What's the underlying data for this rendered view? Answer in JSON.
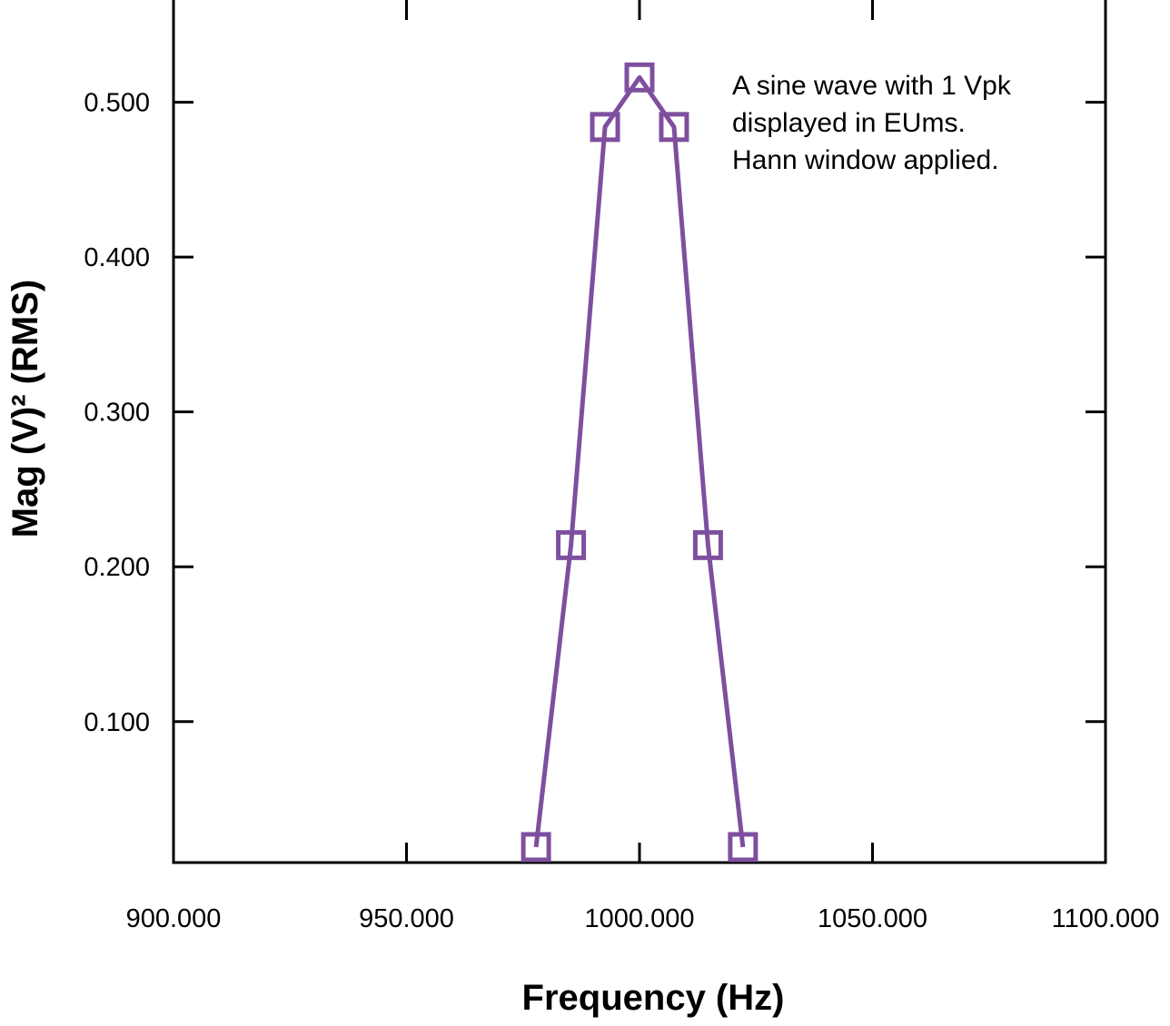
{
  "chart_data": {
    "type": "line",
    "title": "",
    "xlabel": "Frequency (Hz)",
    "ylabel": "Mag (V)² (RMS)",
    "xlim": [
      900,
      1100
    ],
    "ylim": [
      0.009,
      0.566
    ],
    "x_ticks": [
      900,
      950,
      1000,
      1050,
      1100
    ],
    "x_tick_labels": [
      "900.000",
      "950.000",
      "1000.000",
      "1050.000",
      "1100.000"
    ],
    "y_ticks": [
      0.1,
      0.2,
      0.3,
      0.4,
      0.5
    ],
    "y_tick_labels": [
      "0.100",
      "0.200",
      "0.300",
      "0.400",
      "0.500"
    ],
    "grid": false,
    "series": [
      {
        "color": "#7f4f9f",
        "marker": "square",
        "x": [
          977.8,
          985.3,
          992.6,
          1000.0,
          1007.4,
          1014.7,
          1022.2
        ],
        "y": [
          0.019,
          0.214,
          0.484,
          0.516,
          0.484,
          0.214,
          0.019
        ]
      }
    ],
    "annotation": {
      "lines": [
        "A sine wave with 1 Vpk",
        "displayed in EUms.",
        "Hann window applied."
      ],
      "placement": "top-right"
    }
  }
}
